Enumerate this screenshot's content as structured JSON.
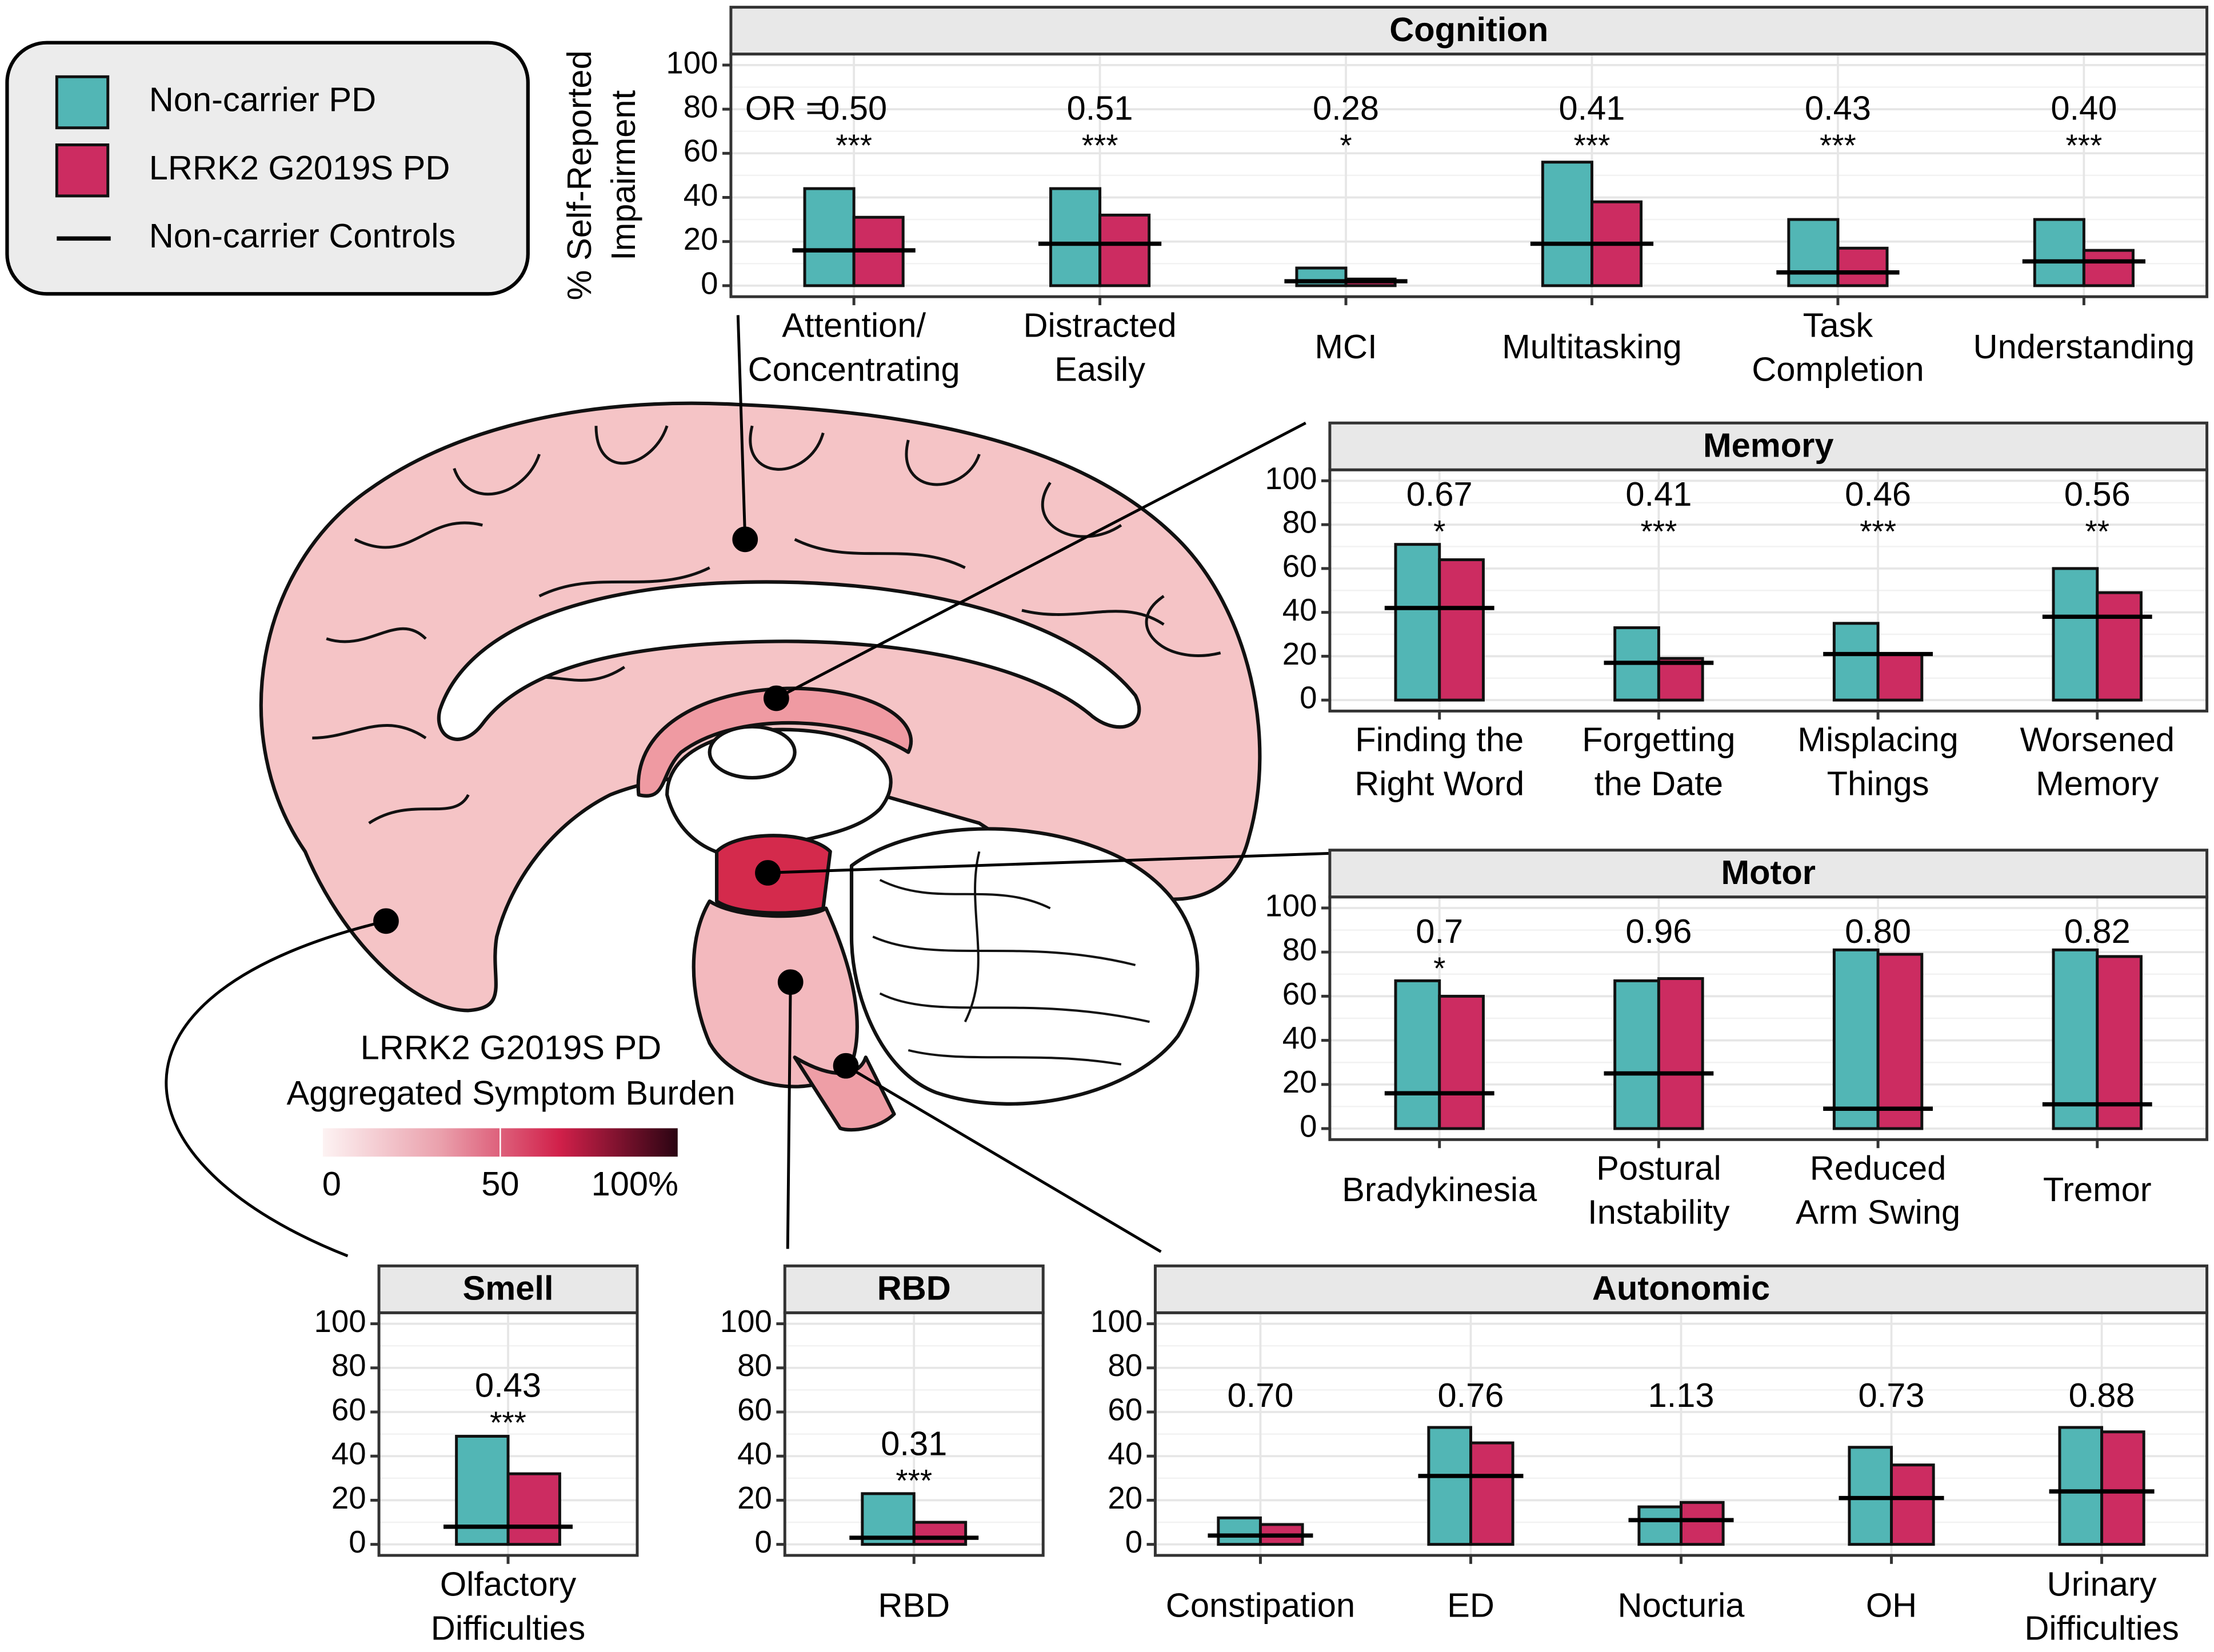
{
  "chart_data": [
    {
      "type": "bar",
      "title": "Cognition",
      "ylabel": [
        "% Self-Reported",
        "Impairment"
      ],
      "or_prefix": "OR =",
      "categories": [
        [
          "Attention/",
          "Concentrating"
        ],
        [
          "Distracted",
          "Easily"
        ],
        "MCI",
        "Multitasking",
        [
          "Task",
          "Completion"
        ],
        "Understanding"
      ],
      "series": [
        {
          "name": "Non-carrier PD",
          "color": "#52b6b5",
          "values": [
            44,
            44,
            8,
            56,
            30,
            30
          ]
        },
        {
          "name": "LRRK2 G2019S PD",
          "color": "#cc2c61",
          "values": [
            31,
            32,
            3,
            38,
            17,
            16
          ]
        },
        {
          "name": "Non-carrier Controls",
          "color": "#000000",
          "style": "line",
          "values": [
            16,
            19,
            2,
            19,
            6,
            11
          ]
        }
      ],
      "or_labels": [
        "0.50",
        "0.51",
        "0.28",
        "0.41",
        "0.43",
        "0.40"
      ],
      "significance": [
        "***",
        "***",
        "*",
        "***",
        "***",
        "***"
      ],
      "ylim": [
        -5,
        105
      ],
      "yticks": [
        0,
        20,
        40,
        60,
        80,
        100
      ],
      "grid": true
    },
    {
      "type": "bar",
      "title": "Memory",
      "categories": [
        [
          "Finding the",
          "Right Word"
        ],
        [
          "Forgetting",
          "the Date"
        ],
        [
          "Misplacing",
          "Things"
        ],
        [
          "Worsened",
          "Memory"
        ]
      ],
      "series": [
        {
          "name": "Non-carrier PD",
          "color": "#52b6b5",
          "values": [
            71,
            33,
            35,
            60
          ]
        },
        {
          "name": "LRRK2 G2019S PD",
          "color": "#cc2c61",
          "values": [
            64,
            19,
            21,
            49
          ]
        },
        {
          "name": "Non-carrier Controls",
          "color": "#000000",
          "style": "line",
          "values": [
            42,
            17,
            21,
            38
          ]
        }
      ],
      "or_labels": [
        "0.67",
        "0.41",
        "0.46",
        "0.56"
      ],
      "significance": [
        "*",
        "***",
        "***",
        "**"
      ],
      "ylim": [
        -5,
        105
      ],
      "yticks": [
        0,
        20,
        40,
        60,
        80,
        100
      ],
      "grid": true
    },
    {
      "type": "bar",
      "title": "Motor",
      "categories": [
        "Bradykinesia",
        [
          "Postural",
          "Instability"
        ],
        [
          "Reduced",
          "Arm Swing"
        ],
        "Tremor"
      ],
      "series": [
        {
          "name": "Non-carrier PD",
          "color": "#52b6b5",
          "values": [
            67,
            67,
            81,
            81
          ]
        },
        {
          "name": "LRRK2 G2019S PD",
          "color": "#cc2c61",
          "values": [
            60,
            68,
            79,
            78
          ]
        },
        {
          "name": "Non-carrier Controls",
          "color": "#000000",
          "style": "line",
          "values": [
            16,
            25,
            9,
            11
          ]
        }
      ],
      "or_labels": [
        "0.7",
        "0.96",
        "0.80",
        "0.82"
      ],
      "significance": [
        "*",
        null,
        null,
        null
      ],
      "ylim": [
        -5,
        105
      ],
      "yticks": [
        0,
        20,
        40,
        60,
        80,
        100
      ],
      "grid": true
    },
    {
      "type": "bar",
      "title": "Smell",
      "categories": [
        [
          "Olfactory",
          "Difficulties"
        ]
      ],
      "series": [
        {
          "name": "Non-carrier PD",
          "color": "#52b6b5",
          "values": [
            49
          ]
        },
        {
          "name": "LRRK2 G2019S PD",
          "color": "#cc2c61",
          "values": [
            32
          ]
        },
        {
          "name": "Non-carrier Controls",
          "color": "#000000",
          "style": "line",
          "values": [
            8
          ]
        }
      ],
      "or_labels": [
        "0.43"
      ],
      "significance": [
        "***"
      ],
      "ylim": [
        -5,
        105
      ],
      "yticks": [
        0,
        20,
        40,
        60,
        80,
        100
      ],
      "grid": true
    },
    {
      "type": "bar",
      "title": "RBD",
      "categories": [
        "RBD"
      ],
      "series": [
        {
          "name": "Non-carrier PD",
          "color": "#52b6b5",
          "values": [
            23
          ]
        },
        {
          "name": "LRRK2 G2019S PD",
          "color": "#cc2c61",
          "values": [
            10
          ]
        },
        {
          "name": "Non-carrier Controls",
          "color": "#000000",
          "style": "line",
          "values": [
            3
          ]
        }
      ],
      "or_labels": [
        "0.31"
      ],
      "significance": [
        "***"
      ],
      "ylim": [
        -5,
        105
      ],
      "yticks": [
        0,
        20,
        40,
        60,
        80,
        100
      ],
      "grid": true
    },
    {
      "type": "bar",
      "title": "Autonomic",
      "categories": [
        "Constipation",
        "ED",
        "Nocturia",
        "OH",
        [
          "Urinary",
          "Difficulties"
        ]
      ],
      "series": [
        {
          "name": "Non-carrier PD",
          "color": "#52b6b5",
          "values": [
            12,
            53,
            17,
            44,
            53
          ]
        },
        {
          "name": "LRRK2 G2019S PD",
          "color": "#cc2c61",
          "values": [
            9,
            46,
            19,
            36,
            51
          ]
        },
        {
          "name": "Non-carrier Controls",
          "color": "#000000",
          "style": "line",
          "values": [
            4,
            31,
            11,
            21,
            24
          ]
        }
      ],
      "or_labels": [
        "0.70",
        "0.76",
        "1.13",
        "0.73",
        "0.88"
      ],
      "significance": [
        null,
        null,
        null,
        null,
        null
      ],
      "ylim": [
        -5,
        105
      ],
      "yticks": [
        0,
        20,
        40,
        60,
        80,
        100
      ],
      "grid": true
    }
  ],
  "colorbar": {
    "title": [
      "LRRK2 G2019S PD",
      "Aggregated Symptom Burden"
    ],
    "lim": [
      0,
      100
    ],
    "ticks": [
      0,
      50,
      {
        "value": 100,
        "label": "100%"
      }
    ],
    "colors": [
      "#fdf3f3",
      "#eaa0ac",
      "#d1204a",
      "#2a0412"
    ]
  }
}
